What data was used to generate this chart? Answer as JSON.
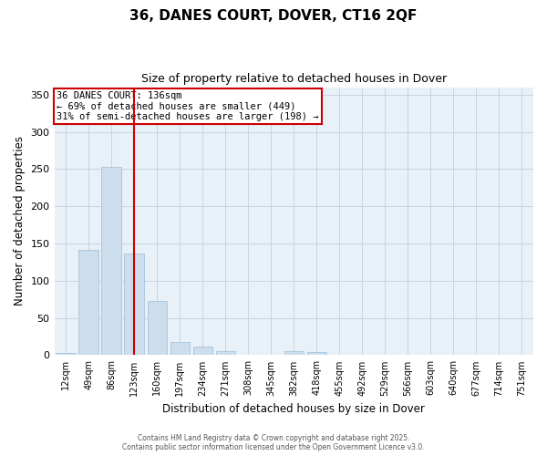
{
  "title": "36, DANES COURT, DOVER, CT16 2QF",
  "subtitle": "Size of property relative to detached houses in Dover",
  "xlabel": "Distribution of detached houses by size in Dover",
  "ylabel": "Number of detached properties",
  "bar_color": "#ccdded",
  "bar_edge_color": "#a8c4d8",
  "background_color": "#e8f0f8",
  "grid_color": "#c8d4e0",
  "categories": [
    "12sqm",
    "49sqm",
    "86sqm",
    "123sqm",
    "160sqm",
    "197sqm",
    "234sqm",
    "271sqm",
    "308sqm",
    "345sqm",
    "382sqm",
    "418sqm",
    "455sqm",
    "492sqm",
    "529sqm",
    "566sqm",
    "603sqm",
    "640sqm",
    "677sqm",
    "714sqm",
    "751sqm"
  ],
  "values": [
    3,
    141,
    253,
    137,
    73,
    18,
    11,
    5,
    0,
    0,
    6,
    4,
    0,
    0,
    0,
    0,
    0,
    0,
    0,
    0,
    1
  ],
  "vline_color": "#cc0000",
  "vline_pos": 3.0,
  "annotation_title": "36 DANES COURT: 136sqm",
  "annotation_line1": "← 69% of detached houses are smaller (449)",
  "annotation_line2": "31% of semi-detached houses are larger (198) →",
  "annotation_box_color": "#cc0000",
  "ylim": [
    0,
    360
  ],
  "yticks": [
    0,
    50,
    100,
    150,
    200,
    250,
    300,
    350
  ],
  "footer1": "Contains HM Land Registry data © Crown copyright and database right 2025.",
  "footer2": "Contains public sector information licensed under the Open Government Licence v3.0."
}
